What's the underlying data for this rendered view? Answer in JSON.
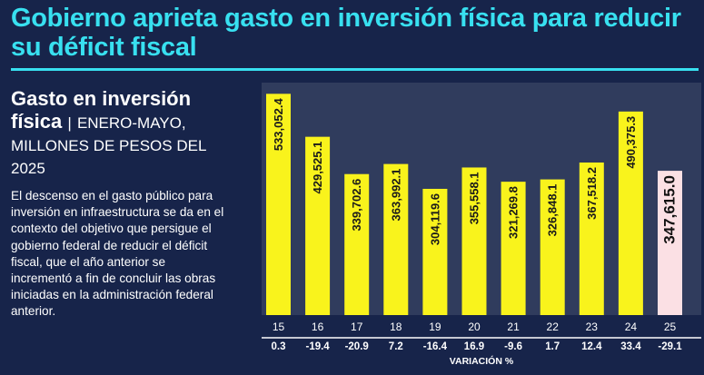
{
  "headline": "Gobierno aprieta gasto en inversión física para reducir su déficit fiscal",
  "subtitle": {
    "bold": "Gasto en inversión física",
    "separator": "|",
    "light": "ENERO-MAYO, MILLONES DE PESOS DEL 2025"
  },
  "description": "El descenso en el gasto público para inversión en infraestructura se da en el contexto del objetivo que persigue el gobierno federal de reducir el déficit fiscal, que el año anterior se incrementó a fin de concluir las obras iniciadas en la administración federal anterior.",
  "colors": {
    "background": "#17244a",
    "headline": "#38e0f0",
    "bar": "#f9f31c",
    "bar_highlight": "#fbe0e4",
    "panel": "#ffffff"
  },
  "chart_data": {
    "type": "bar",
    "categories": [
      "15",
      "16",
      "17",
      "18",
      "19",
      "20",
      "21",
      "22",
      "23",
      "24",
      "25"
    ],
    "values": [
      533052.4,
      429525.1,
      339702.6,
      363992.1,
      304119.6,
      355558.1,
      321269.8,
      326848.1,
      367518.2,
      490375.3,
      347615.0
    ],
    "value_labels": [
      "533,052.4",
      "429,525.1",
      "339,702.6",
      "363,992.1",
      "304,119.6",
      "355,558.1",
      "321,269.8",
      "326,848.1",
      "367,518.2",
      "490,375.3",
      "347,615.0"
    ],
    "variation": [
      "0.3",
      "-19.4",
      "-20.9",
      "7.2",
      "-16.4",
      "16.9",
      "-9.6",
      "1.7",
      "12.4",
      "33.4",
      "-29.1"
    ],
    "variation_label": "VARIACIÓN %",
    "highlight_index": 10,
    "ylim": [
      0,
      560000
    ]
  }
}
